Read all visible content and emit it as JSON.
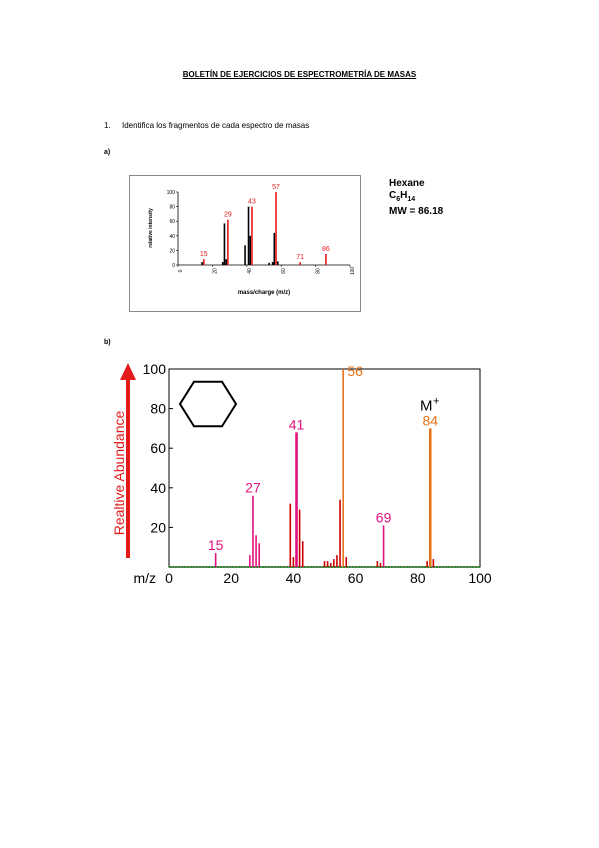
{
  "doc": {
    "title": "BOLETÍN DE EJERCICIOS DE ESPECTROMETRÍA DE MASAS",
    "question_number": "1.",
    "question_text": "Identifica los fragmentos de cada espectro de masas",
    "label_a": "a)",
    "label_b": "b)"
  },
  "compound_a": {
    "name": "Hexane",
    "formula_main": "C",
    "formula_sub1": "6",
    "formula_h": "H",
    "formula_sub2": "14",
    "mw": "MW = 86.18"
  },
  "colors": {
    "red": "#e31a1c",
    "black": "#000000",
    "magenta": "#e0117f",
    "orange": "#e8721c",
    "darkred": "#cc0000",
    "green": "#2e8b2e"
  },
  "chart_data": [
    {
      "type": "bar",
      "title": "",
      "xlabel": "mass/charge (m/z)",
      "ylabel": "relative intensity",
      "xlim": [
        0,
        100
      ],
      "ylim": [
        0,
        100
      ],
      "xticks": [
        "0",
        "20",
        "40",
        "60",
        "80",
        "100"
      ],
      "yticks": [
        "0",
        "20",
        "40",
        "60",
        "80",
        "100"
      ],
      "peaks": [
        {
          "x": 14,
          "y": 4,
          "c": "black"
        },
        {
          "x": 15,
          "y": 8,
          "c": "red"
        },
        {
          "x": 26,
          "y": 4,
          "c": "black"
        },
        {
          "x": 27,
          "y": 57,
          "c": "black"
        },
        {
          "x": 28,
          "y": 8,
          "c": "black"
        },
        {
          "x": 29,
          "y": 62,
          "c": "red"
        },
        {
          "x": 39,
          "y": 27,
          "c": "black"
        },
        {
          "x": 41,
          "y": 80,
          "c": "black"
        },
        {
          "x": 42,
          "y": 40,
          "c": "black"
        },
        {
          "x": 43,
          "y": 80,
          "c": "red"
        },
        {
          "x": 53,
          "y": 3,
          "c": "black"
        },
        {
          "x": 55,
          "y": 4,
          "c": "black"
        },
        {
          "x": 56,
          "y": 44,
          "c": "black"
        },
        {
          "x": 57,
          "y": 100,
          "c": "red"
        },
        {
          "x": 58,
          "y": 5,
          "c": "black"
        },
        {
          "x": 71,
          "y": 4,
          "c": "red"
        },
        {
          "x": 86,
          "y": 15,
          "c": "red"
        }
      ],
      "labels": [
        {
          "x": 15,
          "y": 8,
          "text": "15"
        },
        {
          "x": 29,
          "y": 62,
          "text": "29"
        },
        {
          "x": 43,
          "y": 80,
          "text": "43"
        },
        {
          "x": 57,
          "y": 100,
          "text": "57"
        },
        {
          "x": 71,
          "y": 4,
          "text": "71"
        },
        {
          "x": 86,
          "y": 15,
          "text": "86"
        }
      ]
    },
    {
      "type": "bar",
      "title": "",
      "xlabel": "m/z",
      "ylabel": "Realtive Abundance",
      "xlim": [
        0,
        100
      ],
      "ylim": [
        0,
        100
      ],
      "xticks": [
        "0",
        "20",
        "40",
        "60",
        "80",
        "100"
      ],
      "yticks": [
        "20",
        "40",
        "60",
        "80",
        "100"
      ],
      "molecular_ion_label": "M",
      "molecular_ion_sup": "+",
      "peaks": [
        {
          "x": 15,
          "y": 7,
          "c": "magenta"
        },
        {
          "x": 26,
          "y": 6,
          "c": "magenta"
        },
        {
          "x": 27,
          "y": 36,
          "c": "magenta"
        },
        {
          "x": 28,
          "y": 16,
          "c": "magenta"
        },
        {
          "x": 29,
          "y": 12,
          "c": "magenta"
        },
        {
          "x": 39,
          "y": 32,
          "c": "darkred"
        },
        {
          "x": 40,
          "y": 5,
          "c": "darkred"
        },
        {
          "x": 41,
          "y": 68,
          "c": "magenta"
        },
        {
          "x": 42,
          "y": 29,
          "c": "darkred"
        },
        {
          "x": 43,
          "y": 13,
          "c": "darkred"
        },
        {
          "x": 50,
          "y": 3,
          "c": "darkred"
        },
        {
          "x": 51,
          "y": 3,
          "c": "darkred"
        },
        {
          "x": 52,
          "y": 2,
          "c": "darkred"
        },
        {
          "x": 53,
          "y": 4,
          "c": "darkred"
        },
        {
          "x": 54,
          "y": 6,
          "c": "darkred"
        },
        {
          "x": 55,
          "y": 34,
          "c": "darkred"
        },
        {
          "x": 56,
          "y": 100,
          "c": "orange"
        },
        {
          "x": 57,
          "y": 5,
          "c": "darkred"
        },
        {
          "x": 67,
          "y": 3,
          "c": "darkred"
        },
        {
          "x": 68,
          "y": 2,
          "c": "darkred"
        },
        {
          "x": 69,
          "y": 21,
          "c": "magenta"
        },
        {
          "x": 83,
          "y": 3,
          "c": "darkred"
        },
        {
          "x": 84,
          "y": 70,
          "c": "orange"
        },
        {
          "x": 85,
          "y": 4,
          "c": "darkred"
        }
      ],
      "labels": [
        {
          "x": 15,
          "y": 7,
          "text": "15",
          "c": "magenta"
        },
        {
          "x": 27,
          "y": 36,
          "text": "27",
          "c": "magenta"
        },
        {
          "x": 41,
          "y": 68,
          "text": "41",
          "c": "magenta"
        },
        {
          "x": 56,
          "y": 100,
          "text": "56",
          "c": "orange"
        },
        {
          "x": 69,
          "y": 21,
          "text": "69",
          "c": "magenta"
        },
        {
          "x": 84,
          "y": 70,
          "text": "84",
          "c": "orange"
        }
      ]
    }
  ]
}
